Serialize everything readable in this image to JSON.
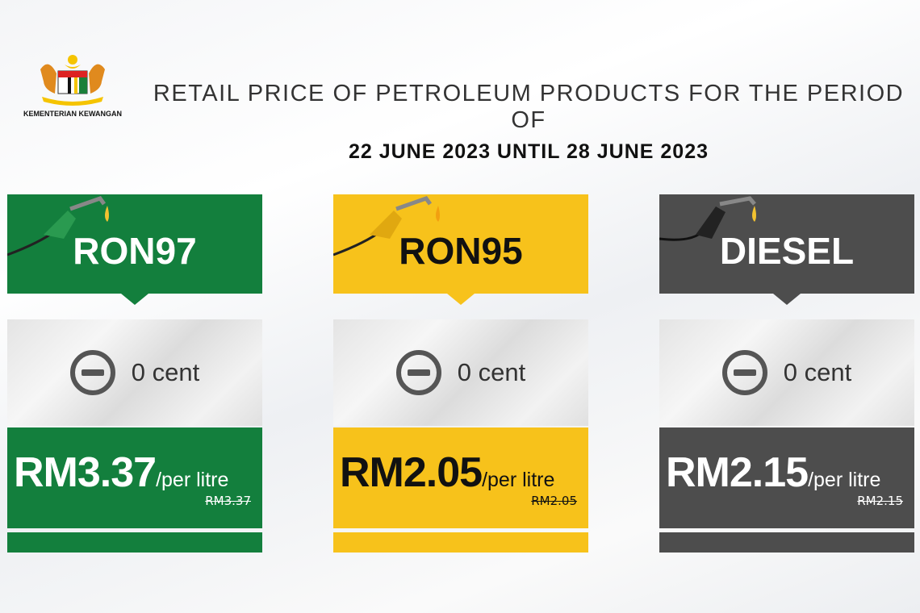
{
  "logo": {
    "ministry": "KEMENTERIAN KEWANGAN"
  },
  "title": {
    "line1": "RETAIL PRICE OF PETROLEUM PRODUCTS FOR THE PERIOD OF",
    "line2": "22 JUNE 2023 UNTIL 28 JUNE 2023"
  },
  "colors": {
    "ron97": "#137f3d",
    "ron95": "#f7c21b",
    "diesel": "#4d4d4d"
  },
  "products": [
    {
      "name": "RON97",
      "change": "0 cent",
      "change_icon": "minus-circle-icon",
      "price": "RM3.37",
      "unit": "/per litre",
      "previous": "RM3.37"
    },
    {
      "name": "RON95",
      "change": "0 cent",
      "change_icon": "minus-circle-icon",
      "price": "RM2.05",
      "unit": "/per litre",
      "previous": "RM2.05"
    },
    {
      "name": "DIESEL",
      "change": "0 cent",
      "change_icon": "minus-circle-icon",
      "price": "RM2.15",
      "unit": "/per litre",
      "previous": "RM2.15"
    }
  ]
}
